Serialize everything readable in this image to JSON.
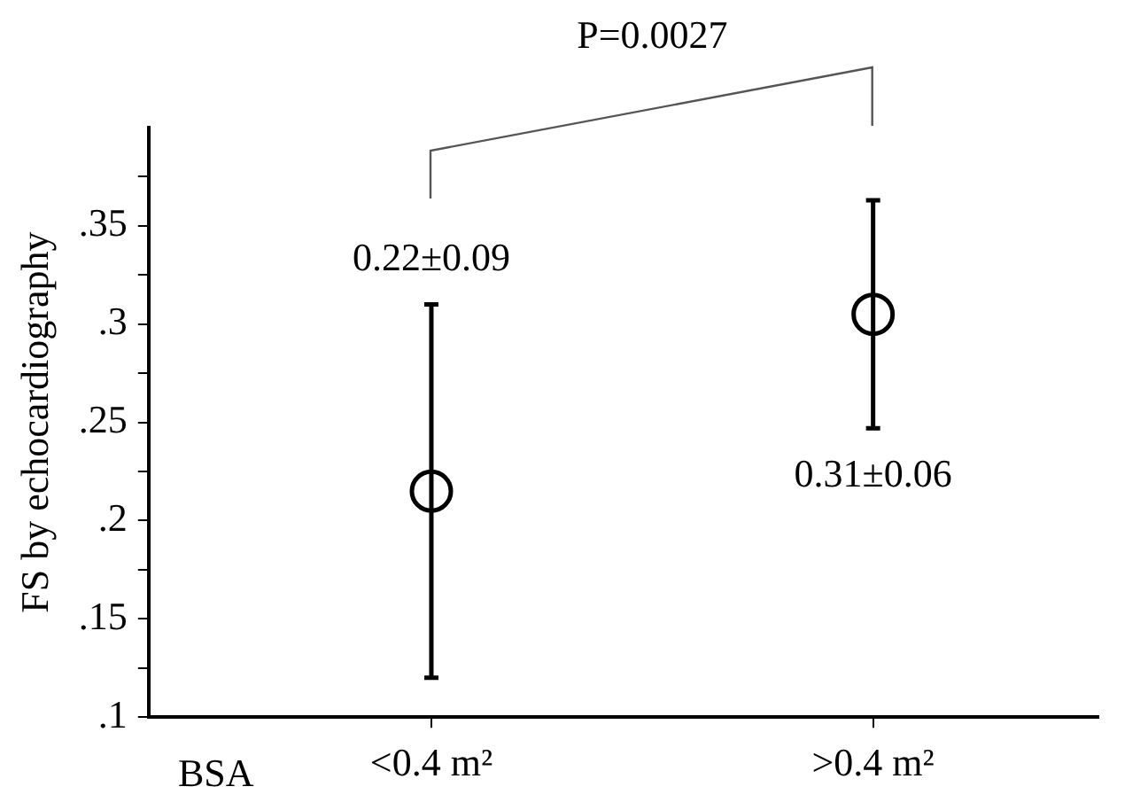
{
  "chart_data": {
    "type": "scatter",
    "xlabel": "BSA",
    "ylabel": "FS by echocardiography",
    "categories": [
      "<0.4 m²",
      ">0.4 m²"
    ],
    "values": [
      0.215,
      0.305
    ],
    "errors": [
      0.095,
      0.058
    ],
    "color": "#000000",
    "marker": "circle",
    "ylim": [
      0.1,
      0.4
    ],
    "yticks": [
      {
        "value": 0.1,
        "label": ".1"
      },
      {
        "value": 0.125,
        "label": null
      },
      {
        "value": 0.15,
        "label": ".15"
      },
      {
        "value": 0.175,
        "label": null
      },
      {
        "value": 0.2,
        "label": ".2"
      },
      {
        "value": 0.225,
        "label": null
      },
      {
        "value": 0.25,
        "label": ".25"
      },
      {
        "value": 0.275,
        "label": null
      },
      {
        "value": 0.3,
        "label": ".3"
      },
      {
        "value": 0.325,
        "label": null
      },
      {
        "value": 0.35,
        "label": ".35"
      },
      {
        "value": 0.375,
        "label": null
      }
    ],
    "annotations": [
      "P=0.0027",
      "0.22±0.09",
      "0.31±0.06"
    ],
    "grid": false,
    "legend": false
  }
}
